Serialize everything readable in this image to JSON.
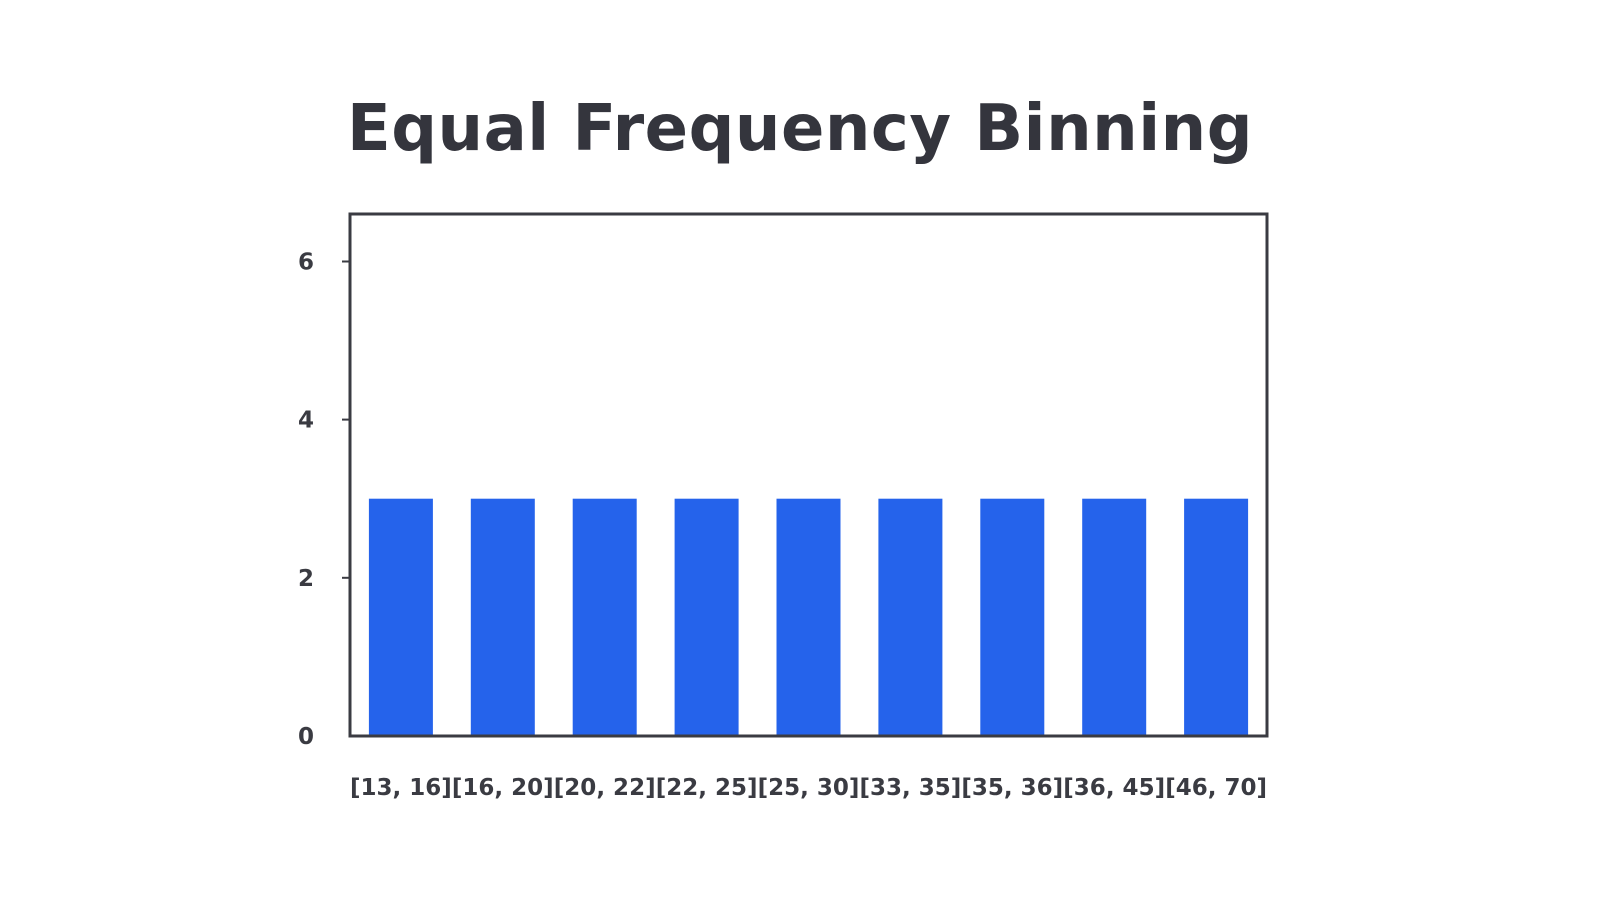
{
  "chart_data": {
    "type": "bar",
    "title": "Equal Frequency Binning",
    "categories": [
      "[13, 16]",
      "[16, 20]",
      "[20, 22]",
      "[22, 25]",
      "[25, 30]",
      "[33, 35]",
      "[35, 36]",
      "[36, 45]",
      "[46, 70]"
    ],
    "values": [
      3,
      3,
      3,
      3,
      3,
      3,
      3,
      3,
      3
    ],
    "xlabel": "",
    "ylabel": "",
    "ylim": [
      0,
      6.6
    ],
    "yticks": [
      0,
      2,
      4,
      6
    ],
    "grid": false,
    "legend": "none",
    "colors": {
      "bar": "#2563EB",
      "axis": "#3a3b42",
      "text": "#3a3b42",
      "title": "#34353d"
    }
  }
}
